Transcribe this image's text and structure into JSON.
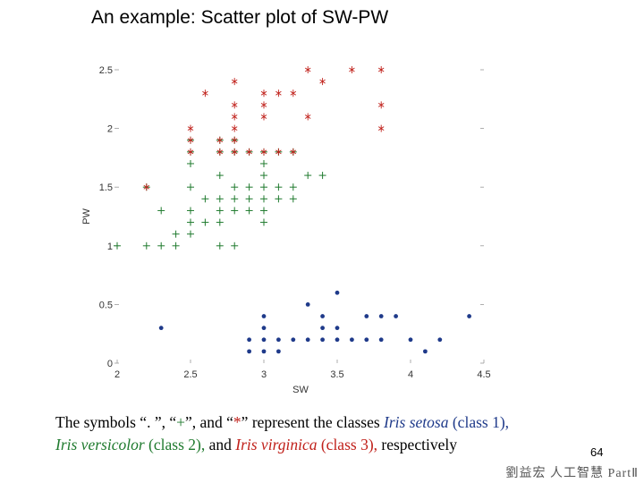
{
  "slide": {
    "title": "An example: Scatter plot of SW-PW",
    "caption": {
      "line1_a": "The symbols “. ”, “",
      "plus_symbol": "+",
      "line1_b": "”, and “",
      "star_symbol": "*",
      "line1_c": "” represent the classes ",
      "class1_name": "Iris setosa",
      "class1_label": " (class 1),",
      "class2_name": "Iris versicolor",
      "class2_label": " (class 2),",
      "line2_mid": " and ",
      "class3_name": "Iris virginica",
      "class3_label": " (class 3),",
      "line2_end": " respectively"
    },
    "page_number": "64",
    "footer": "劉益宏  人工智慧 PartⅡ"
  },
  "colors": {
    "setosa": "#1f3a8a",
    "versicolor": "#1f7a2e",
    "virginica": "#c0201a"
  },
  "chart_data": {
    "type": "scatter",
    "xlabel": "SW",
    "ylabel": "PW",
    "xlim": [
      2,
      4.5
    ],
    "ylim": [
      0,
      2.5
    ],
    "xticks": [
      "2",
      "2.5",
      "3",
      "3.5",
      "4",
      "4.5"
    ],
    "yticks": [
      "0",
      "0.5",
      "1",
      "1.5",
      "2",
      "2.5"
    ],
    "series": [
      {
        "marker": ".",
        "color": "#1f3a8a",
        "points": [
          [
            2.3,
            0.3
          ],
          [
            2.9,
            0.2
          ],
          [
            2.9,
            0.1
          ],
          [
            3.0,
            0.4
          ],
          [
            3.0,
            0.3
          ],
          [
            3.0,
            0.2
          ],
          [
            3.0,
            0.1
          ],
          [
            3.1,
            0.2
          ],
          [
            3.1,
            0.1
          ],
          [
            3.2,
            0.2
          ],
          [
            3.3,
            0.2
          ],
          [
            3.3,
            0.5
          ],
          [
            3.4,
            0.2
          ],
          [
            3.4,
            0.3
          ],
          [
            3.4,
            0.4
          ],
          [
            3.5,
            0.2
          ],
          [
            3.5,
            0.3
          ],
          [
            3.5,
            0.6
          ],
          [
            3.6,
            0.2
          ],
          [
            3.7,
            0.2
          ],
          [
            3.7,
            0.4
          ],
          [
            3.8,
            0.2
          ],
          [
            3.8,
            0.4
          ],
          [
            3.9,
            0.4
          ],
          [
            4.0,
            0.2
          ],
          [
            4.1,
            0.1
          ],
          [
            4.2,
            0.2
          ],
          [
            4.4,
            0.4
          ]
        ]
      },
      {
        "marker": "+",
        "color": "#1f7a2e",
        "points": [
          [
            2.0,
            1.0
          ],
          [
            2.2,
            1.0
          ],
          [
            2.2,
            1.5
          ],
          [
            2.3,
            1.0
          ],
          [
            2.3,
            1.3
          ],
          [
            2.4,
            1.0
          ],
          [
            2.4,
            1.1
          ],
          [
            2.5,
            1.1
          ],
          [
            2.5,
            1.2
          ],
          [
            2.5,
            1.3
          ],
          [
            2.5,
            1.5
          ],
          [
            2.5,
            1.7
          ],
          [
            2.5,
            1.8
          ],
          [
            2.5,
            1.9
          ],
          [
            2.6,
            1.2
          ],
          [
            2.6,
            1.4
          ],
          [
            2.7,
            1.0
          ],
          [
            2.7,
            1.2
          ],
          [
            2.7,
            1.3
          ],
          [
            2.7,
            1.4
          ],
          [
            2.7,
            1.6
          ],
          [
            2.7,
            1.8
          ],
          [
            2.7,
            1.9
          ],
          [
            2.8,
            1.0
          ],
          [
            2.8,
            1.3
          ],
          [
            2.8,
            1.4
          ],
          [
            2.8,
            1.5
          ],
          [
            2.8,
            1.8
          ],
          [
            2.8,
            1.9
          ],
          [
            2.9,
            1.3
          ],
          [
            2.9,
            1.4
          ],
          [
            2.9,
            1.5
          ],
          [
            2.9,
            1.8
          ],
          [
            3.0,
            1.2
          ],
          [
            3.0,
            1.3
          ],
          [
            3.0,
            1.4
          ],
          [
            3.0,
            1.5
          ],
          [
            3.0,
            1.6
          ],
          [
            3.0,
            1.7
          ],
          [
            3.0,
            1.8
          ],
          [
            3.1,
            1.4
          ],
          [
            3.1,
            1.5
          ],
          [
            3.1,
            1.8
          ],
          [
            3.2,
            1.4
          ],
          [
            3.2,
            1.5
          ],
          [
            3.2,
            1.8
          ],
          [
            3.3,
            1.6
          ],
          [
            3.4,
            1.6
          ]
        ]
      },
      {
        "marker": "*",
        "color": "#c0201a",
        "points": [
          [
            2.2,
            1.5
          ],
          [
            2.5,
            1.8
          ],
          [
            2.5,
            1.9
          ],
          [
            2.5,
            2.0
          ],
          [
            2.6,
            2.3
          ],
          [
            2.7,
            1.8
          ],
          [
            2.7,
            1.9
          ],
          [
            2.8,
            1.8
          ],
          [
            2.8,
            1.9
          ],
          [
            2.8,
            2.0
          ],
          [
            2.8,
            2.1
          ],
          [
            2.8,
            2.2
          ],
          [
            2.8,
            2.4
          ],
          [
            2.9,
            1.8
          ],
          [
            3.0,
            1.8
          ],
          [
            3.0,
            2.1
          ],
          [
            3.0,
            2.2
          ],
          [
            3.0,
            2.3
          ],
          [
            3.1,
            1.8
          ],
          [
            3.1,
            2.3
          ],
          [
            3.2,
            1.8
          ],
          [
            3.2,
            2.3
          ],
          [
            3.3,
            2.1
          ],
          [
            3.3,
            2.5
          ],
          [
            3.4,
            2.4
          ],
          [
            3.6,
            2.5
          ],
          [
            3.8,
            2.0
          ],
          [
            3.8,
            2.2
          ],
          [
            3.8,
            2.5
          ]
        ]
      }
    ]
  }
}
